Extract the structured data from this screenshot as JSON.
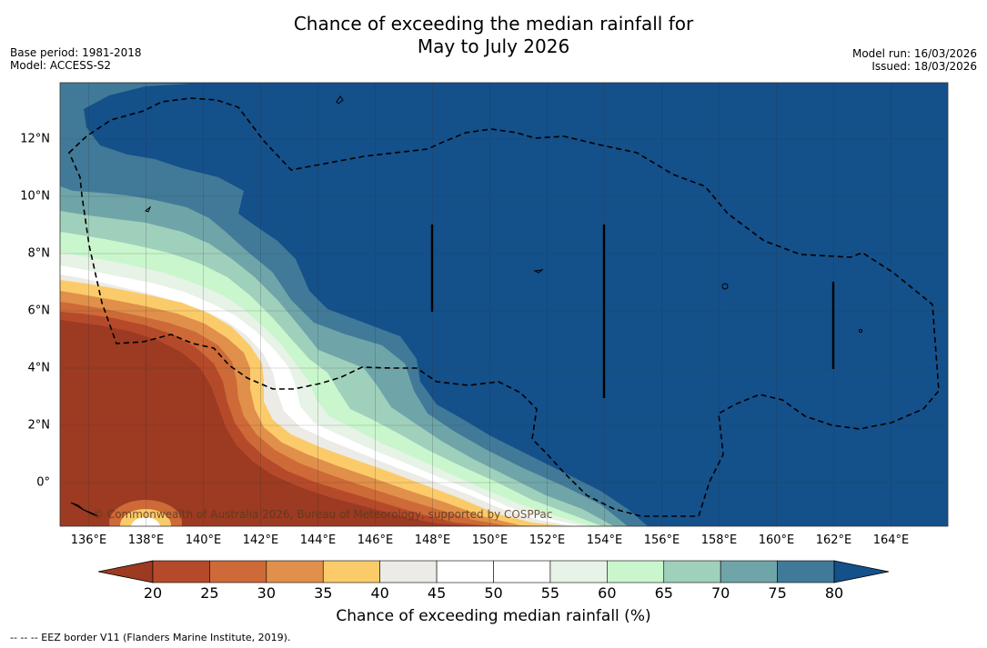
{
  "title": {
    "line1": "Chance of exceeding the median rainfall for",
    "line2": "May to July 2026"
  },
  "meta_left": {
    "base_period": "Base period: 1981-2018",
    "model": "Model: ACCESS-S2"
  },
  "meta_right": {
    "model_run": "Model run: 16/03/2026",
    "issued": "Issued: 18/03/2026"
  },
  "x_ticks": [
    "136°E",
    "138°E",
    "140°E",
    "142°E",
    "144°E",
    "146°E",
    "148°E",
    "150°E",
    "152°E",
    "154°E",
    "156°E",
    "158°E",
    "160°E",
    "162°E",
    "164°E"
  ],
  "y_ticks": [
    "12°N",
    "10°N",
    "8°N",
    "6°N",
    "4°N",
    "2°N",
    "0°"
  ],
  "colorbar": {
    "levels": [
      "20",
      "25",
      "30",
      "35",
      "40",
      "45",
      "50",
      "55",
      "60",
      "65",
      "70",
      "75",
      "80"
    ],
    "colors": [
      "#9c3a22",
      "#b54a2a",
      "#cd6a37",
      "#e0904a",
      "#fbcb6a",
      "#ecebe6",
      "#ffffff",
      "#ffffff",
      "#e6f3e6",
      "#c9f6cc",
      "#9fd0bc",
      "#6fa5a8",
      "#417a98",
      "#14508a"
    ],
    "below_color": "#9c3a22",
    "above_color": "#14508a",
    "label": "Chance of exceeding median rainfall (%)"
  },
  "credit": "© Commonwealth of Australia 2026, Bureau of Meteorology, supported by COSPPac",
  "footnote": "--  --  -- EEZ border V11 (Flanders Marine Institute, 2019)."
}
